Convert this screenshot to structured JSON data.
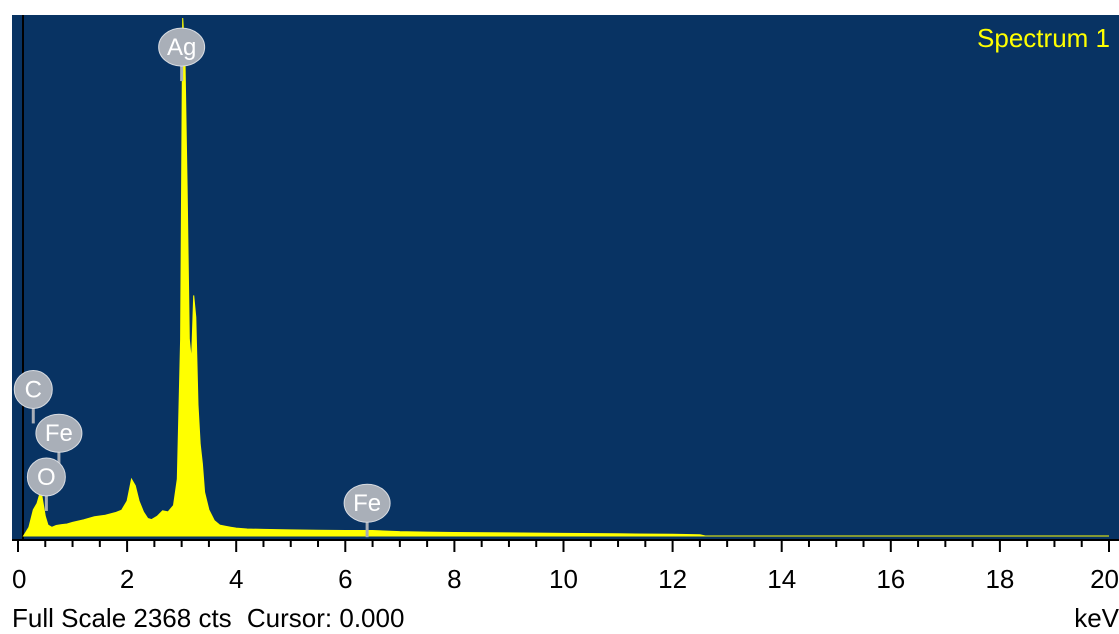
{
  "chart_data": {
    "type": "area",
    "title": "Spectrum 1",
    "xlabel": "keV",
    "xlim": [
      0,
      20
    ],
    "ylim": [
      0,
      2368
    ],
    "x_ticks": [
      "0",
      "2",
      "4",
      "6",
      "8",
      "10",
      "12",
      "14",
      "16",
      "18",
      "20"
    ],
    "colors": {
      "plot_background": "#083363",
      "spectrum_fill": "#ffff00",
      "title": "#ffff00",
      "peak_label_bg": "#a9afb8"
    },
    "series": [
      {
        "x": [
          0.1,
          0.2,
          0.28,
          0.35,
          0.42,
          0.5,
          0.55,
          0.62,
          0.7,
          0.8,
          0.9,
          1.0,
          1.2,
          1.4,
          1.6,
          1.8,
          1.9,
          2.0,
          2.08,
          2.15,
          2.22,
          2.3,
          2.38,
          2.45,
          2.55,
          2.65,
          2.75,
          2.85,
          2.92,
          2.98,
          3.02,
          3.06,
          3.1,
          3.14,
          3.18,
          3.22,
          3.26,
          3.3,
          3.34,
          3.38,
          3.42,
          3.5,
          3.6,
          3.7,
          3.8,
          3.9,
          4.0,
          4.2,
          4.5,
          5.0,
          5.5,
          6.0,
          6.5,
          7.0,
          7.5,
          8.0,
          9.0,
          10.0,
          11.0,
          12.0,
          12.5,
          12.6,
          13.0,
          20.0
        ],
        "y": [
          0,
          40,
          120,
          150,
          210,
          90,
          50,
          40,
          48,
          52,
          55,
          62,
          74,
          88,
          95,
          108,
          118,
          160,
          260,
          230,
          160,
          110,
          80,
          75,
          90,
          115,
          110,
          140,
          260,
          900,
          2368,
          2200,
          1600,
          900,
          800,
          1100,
          1000,
          600,
          420,
          330,
          200,
          120,
          70,
          50,
          45,
          40,
          36,
          32,
          30,
          28,
          26,
          25,
          25,
          20,
          18,
          16,
          14,
          12,
          10,
          8,
          6,
          0,
          0,
          0
        ]
      }
    ],
    "peak_labels": [
      {
        "element": "Ag",
        "kev": 3.0,
        "cts": 2235
      },
      {
        "element": "C",
        "kev": 0.28,
        "cts": 670
      },
      {
        "element": "Fe",
        "kev": 0.75,
        "cts": 470
      },
      {
        "element": "O",
        "kev": 0.52,
        "cts": 270
      },
      {
        "element": "Fe",
        "kev": 6.4,
        "cts": 150
      }
    ]
  },
  "status": {
    "full_scale": "Full Scale 2368 cts",
    "cursor": "Cursor: 0.000",
    "unit": "keV"
  }
}
